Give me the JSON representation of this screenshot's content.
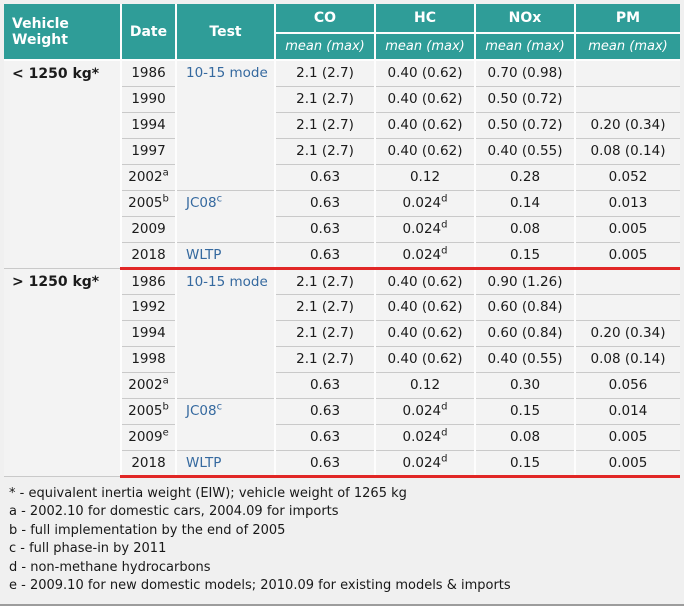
{
  "colors": {
    "header_teal": "#2f9d98",
    "link_blue": "#35699f",
    "highlight_red": "#e12726",
    "row_bg": "#f3f3f3",
    "page_bg": "#f0f0f0"
  },
  "chart_data": {
    "type": "table",
    "header": {
      "vehicle_weight": "Vehicle Weight",
      "date": "Date",
      "test": "Test",
      "co": "CO",
      "hc": "HC",
      "nox": "NOx",
      "pm": "PM",
      "subheader": "mean (max)"
    },
    "sections": [
      {
        "weight": "< 1250 kg*",
        "rows": [
          {
            "date": "1986",
            "date_sup": "",
            "test": "10-15 mode",
            "test_sup": "",
            "co": "2.1 (2.7)",
            "hc": "0.40 (0.62)",
            "hc_sup": "",
            "nox": "0.70 (0.98)",
            "pm": ""
          },
          {
            "date": "1990",
            "date_sup": "",
            "co": "2.1 (2.7)",
            "hc": "0.40 (0.62)",
            "hc_sup": "",
            "nox": "0.50 (0.72)",
            "pm": ""
          },
          {
            "date": "1994",
            "date_sup": "",
            "co": "2.1 (2.7)",
            "hc": "0.40 (0.62)",
            "hc_sup": "",
            "nox": "0.50 (0.72)",
            "pm": "0.20 (0.34)"
          },
          {
            "date": "1997",
            "date_sup": "",
            "co": "2.1 (2.7)",
            "hc": "0.40 (0.62)",
            "hc_sup": "",
            "nox": "0.40 (0.55)",
            "pm": "0.08 (0.14)"
          },
          {
            "date": "2002",
            "date_sup": "a",
            "co": "0.63",
            "hc": "0.12",
            "hc_sup": "",
            "nox": "0.28",
            "pm": "0.052"
          },
          {
            "date": "2005",
            "date_sup": "b",
            "test": "JC08",
            "test_sup": "c",
            "co": "0.63",
            "hc": "0.024",
            "hc_sup": "d",
            "nox": "0.14",
            "pm": "0.013"
          },
          {
            "date": "2009",
            "date_sup": "",
            "co": "0.63",
            "hc": "0.024",
            "hc_sup": "d",
            "nox": "0.08",
            "pm": "0.005"
          },
          {
            "date": "2018",
            "date_sup": "",
            "test": "WLTP",
            "test_sup": "",
            "co": "0.63",
            "hc": "0.024",
            "hc_sup": "d",
            "nox": "0.15",
            "pm": "0.005"
          }
        ]
      },
      {
        "weight": "> 1250 kg*",
        "rows": [
          {
            "date": "1986",
            "date_sup": "",
            "test": "10-15 mode",
            "test_sup": "",
            "co": "2.1 (2.7)",
            "hc": "0.40 (0.62)",
            "hc_sup": "",
            "nox": "0.90 (1.26)",
            "pm": ""
          },
          {
            "date": "1992",
            "date_sup": "",
            "co": "2.1 (2.7)",
            "hc": "0.40 (0.62)",
            "hc_sup": "",
            "nox": "0.60 (0.84)",
            "pm": ""
          },
          {
            "date": "1994",
            "date_sup": "",
            "co": "2.1 (2.7)",
            "hc": "0.40 (0.62)",
            "hc_sup": "",
            "nox": "0.60 (0.84)",
            "pm": "0.20 (0.34)"
          },
          {
            "date": "1998",
            "date_sup": "",
            "co": "2.1 (2.7)",
            "hc": "0.40 (0.62)",
            "hc_sup": "",
            "nox": "0.40 (0.55)",
            "pm": "0.08 (0.14)"
          },
          {
            "date": "2002",
            "date_sup": "a",
            "co": "0.63",
            "hc": "0.12",
            "hc_sup": "",
            "nox": "0.30",
            "pm": "0.056"
          },
          {
            "date": "2005",
            "date_sup": "b",
            "test": "JC08",
            "test_sup": "c",
            "co": "0.63",
            "hc": "0.024",
            "hc_sup": "d",
            "nox": "0.15",
            "pm": "0.014"
          },
          {
            "date": "2009",
            "date_sup": "e",
            "co": "0.63",
            "hc": "0.024",
            "hc_sup": "d",
            "nox": "0.08",
            "pm": "0.005"
          },
          {
            "date": "2018",
            "date_sup": "",
            "test": "WLTP",
            "test_sup": "",
            "co": "0.63",
            "hc": "0.024",
            "hc_sup": "d",
            "nox": "0.15",
            "pm": "0.005"
          }
        ]
      }
    ],
    "footnotes": [
      "* - equivalent inertia weight (EIW); vehicle weight of 1265 kg",
      "a - 2002.10 for domestic cars, 2004.09 for imports",
      "b - full implementation by the end of 2005",
      "c - full phase-in by 2011",
      "d - non-methane hydrocarbons",
      "e - 2009.10 for new domestic models; 2010.09 for existing models & imports"
    ]
  }
}
